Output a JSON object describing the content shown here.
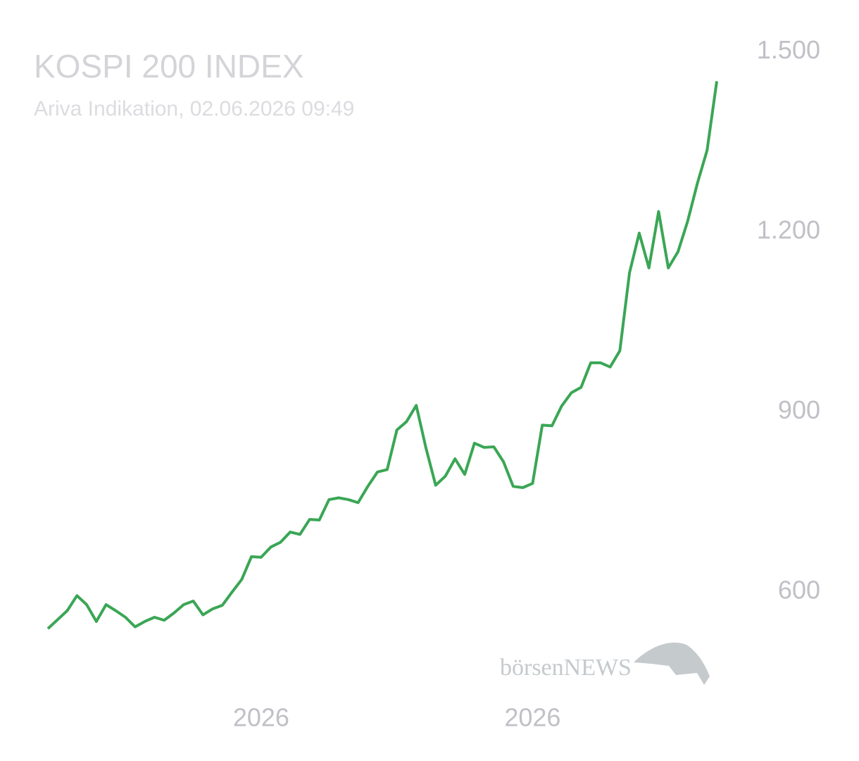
{
  "chart_data": {
    "type": "line",
    "title": "KOSPI 200 INDEX",
    "subtitle": "Ariva Indikation, 02.06.2026 09:49",
    "watermark": "börsenNEWS",
    "color": "#3aa655",
    "values": [
      539,
      554,
      569,
      594,
      579,
      551,
      579,
      569,
      558,
      542,
      551,
      558,
      553,
      565,
      579,
      585,
      562,
      572,
      578,
      600,
      621,
      659,
      658,
      675,
      683,
      700,
      696,
      721,
      720,
      754,
      757,
      754,
      749,
      776,
      800,
      804,
      870,
      884,
      911,
      840,
      778,
      793,
      822,
      796,
      848,
      841,
      842,
      817,
      776,
      774,
      781,
      878,
      877,
      910,
      932,
      941,
      982,
      982,
      975,
      1002,
      1132,
      1198,
      1140,
      1234,
      1140,
      1167,
      1218,
      1281,
      1336,
      1451
    ],
    "xlim": [
      0,
      69
    ],
    "xticks": [
      {
        "value": 22,
        "label": "2026"
      },
      {
        "value": 50,
        "label": "2026"
      }
    ],
    "ylim": [
      450,
      1550
    ],
    "yticks": [
      600,
      900,
      {
        "value": 1200,
        "label": "1.200"
      },
      {
        "value": 1500,
        "label": "1.500"
      }
    ],
    "grid": false
  }
}
